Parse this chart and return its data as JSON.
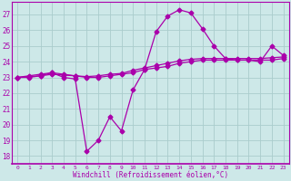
{
  "xlabel": "Windchill (Refroidissement éolien,°C)",
  "background_color": "#cde8e8",
  "grid_color": "#aacccc",
  "line_color": "#aa00aa",
  "hours": [
    0,
    1,
    2,
    3,
    4,
    5,
    6,
    7,
    8,
    9,
    10,
    11,
    12,
    13,
    14,
    15,
    16,
    17,
    18,
    19,
    20,
    21,
    22,
    23
  ],
  "windchill": [
    23.0,
    23.0,
    23.1,
    23.3,
    23.0,
    22.9,
    18.3,
    19.0,
    20.5,
    19.6,
    22.2,
    23.5,
    25.9,
    26.9,
    27.3,
    27.1,
    26.1,
    25.0,
    24.2,
    24.1,
    24.1,
    24.0,
    25.0,
    24.4
  ],
  "temp_line1": [
    23.0,
    23.1,
    23.2,
    23.3,
    23.2,
    23.1,
    23.0,
    23.0,
    23.1,
    23.2,
    23.3,
    23.5,
    23.6,
    23.7,
    23.9,
    24.0,
    24.1,
    24.1,
    24.1,
    24.1,
    24.1,
    24.1,
    24.1,
    24.2
  ],
  "temp_line2": [
    23.0,
    23.05,
    23.1,
    23.2,
    23.15,
    23.1,
    23.05,
    23.1,
    23.2,
    23.25,
    23.45,
    23.6,
    23.75,
    23.9,
    24.05,
    24.15,
    24.2,
    24.2,
    24.2,
    24.2,
    24.2,
    24.2,
    24.25,
    24.3
  ],
  "ylim": [
    17.5,
    27.8
  ],
  "yticks": [
    18,
    19,
    20,
    21,
    22,
    23,
    24,
    25,
    26,
    27
  ]
}
